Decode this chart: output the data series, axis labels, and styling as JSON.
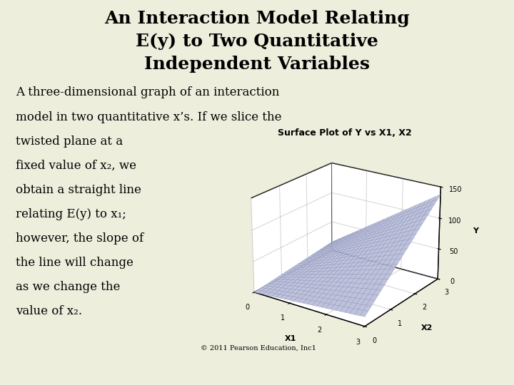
{
  "background_color": "#eeeedd",
  "title_line1": "An Interaction Model Relating",
  "title_line2": "E(y) to Two Quantitative",
  "title_line3": "Independent Variables",
  "body_text_lines": [
    "A three-dimensional graph of an interaction",
    "model in two quantitative x’s. If we slice the",
    "twisted plane at a",
    "fixed value of x₂, we",
    "obtain a straight line",
    "relating E(y) to x₁;",
    "however, the slope of",
    "the line will change",
    "as we change the",
    "value of x₂."
  ],
  "plot_title": "Surface Plot of Y vs X1, X2",
  "x1_label": "X1",
  "x2_label": "X2",
  "y_label": "Y",
  "copyright": "© 2011 Pearson Education, Inc1",
  "title_fontsize": 18,
  "body_fontsize": 12,
  "surface_color": "#b8bcd8",
  "surface_edge_color": "#8890b8",
  "pane_color": "#ffffff",
  "elev": 22,
  "azim": -55
}
